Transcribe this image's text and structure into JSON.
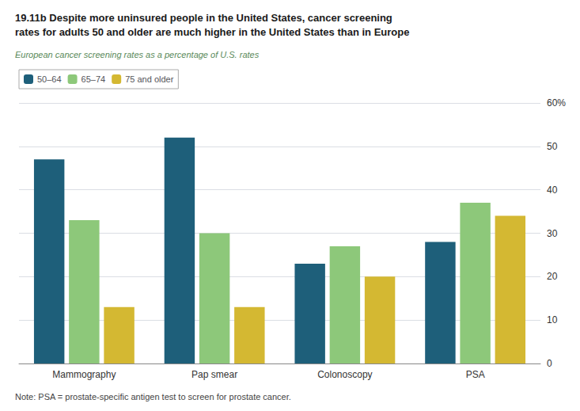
{
  "chart_data": {
    "type": "bar",
    "title": "19.11b Despite more uninsured people in the United States, cancer screening\nrates for adults 50 and older are much higher in the United States than in Europe",
    "subtitle": "European cancer screening rates as a percentage of U.S. rates",
    "annotations": [
      "Note: PSA = prostate-specific antigen test to screen for prostate cancer."
    ],
    "categories": [
      "Mammography",
      "Pap smear",
      "Colonoscopy",
      "PSA"
    ],
    "series": [
      {
        "name": "50–64",
        "color": "#1e5f7a",
        "values": [
          47,
          52,
          23,
          28
        ]
      },
      {
        "name": "65–74",
        "color": "#8dc87a",
        "values": [
          33,
          30,
          27,
          37
        ]
      },
      {
        "name": "75 and older",
        "color": "#d4b832",
        "values": [
          13,
          13,
          20,
          34
        ]
      }
    ],
    "ylim": [
      0,
      60
    ],
    "yticks": [
      0,
      10,
      20,
      30,
      40,
      50,
      {
        "value": 60,
        "label": "60%"
      }
    ],
    "grid": true,
    "legend": "upper left"
  }
}
